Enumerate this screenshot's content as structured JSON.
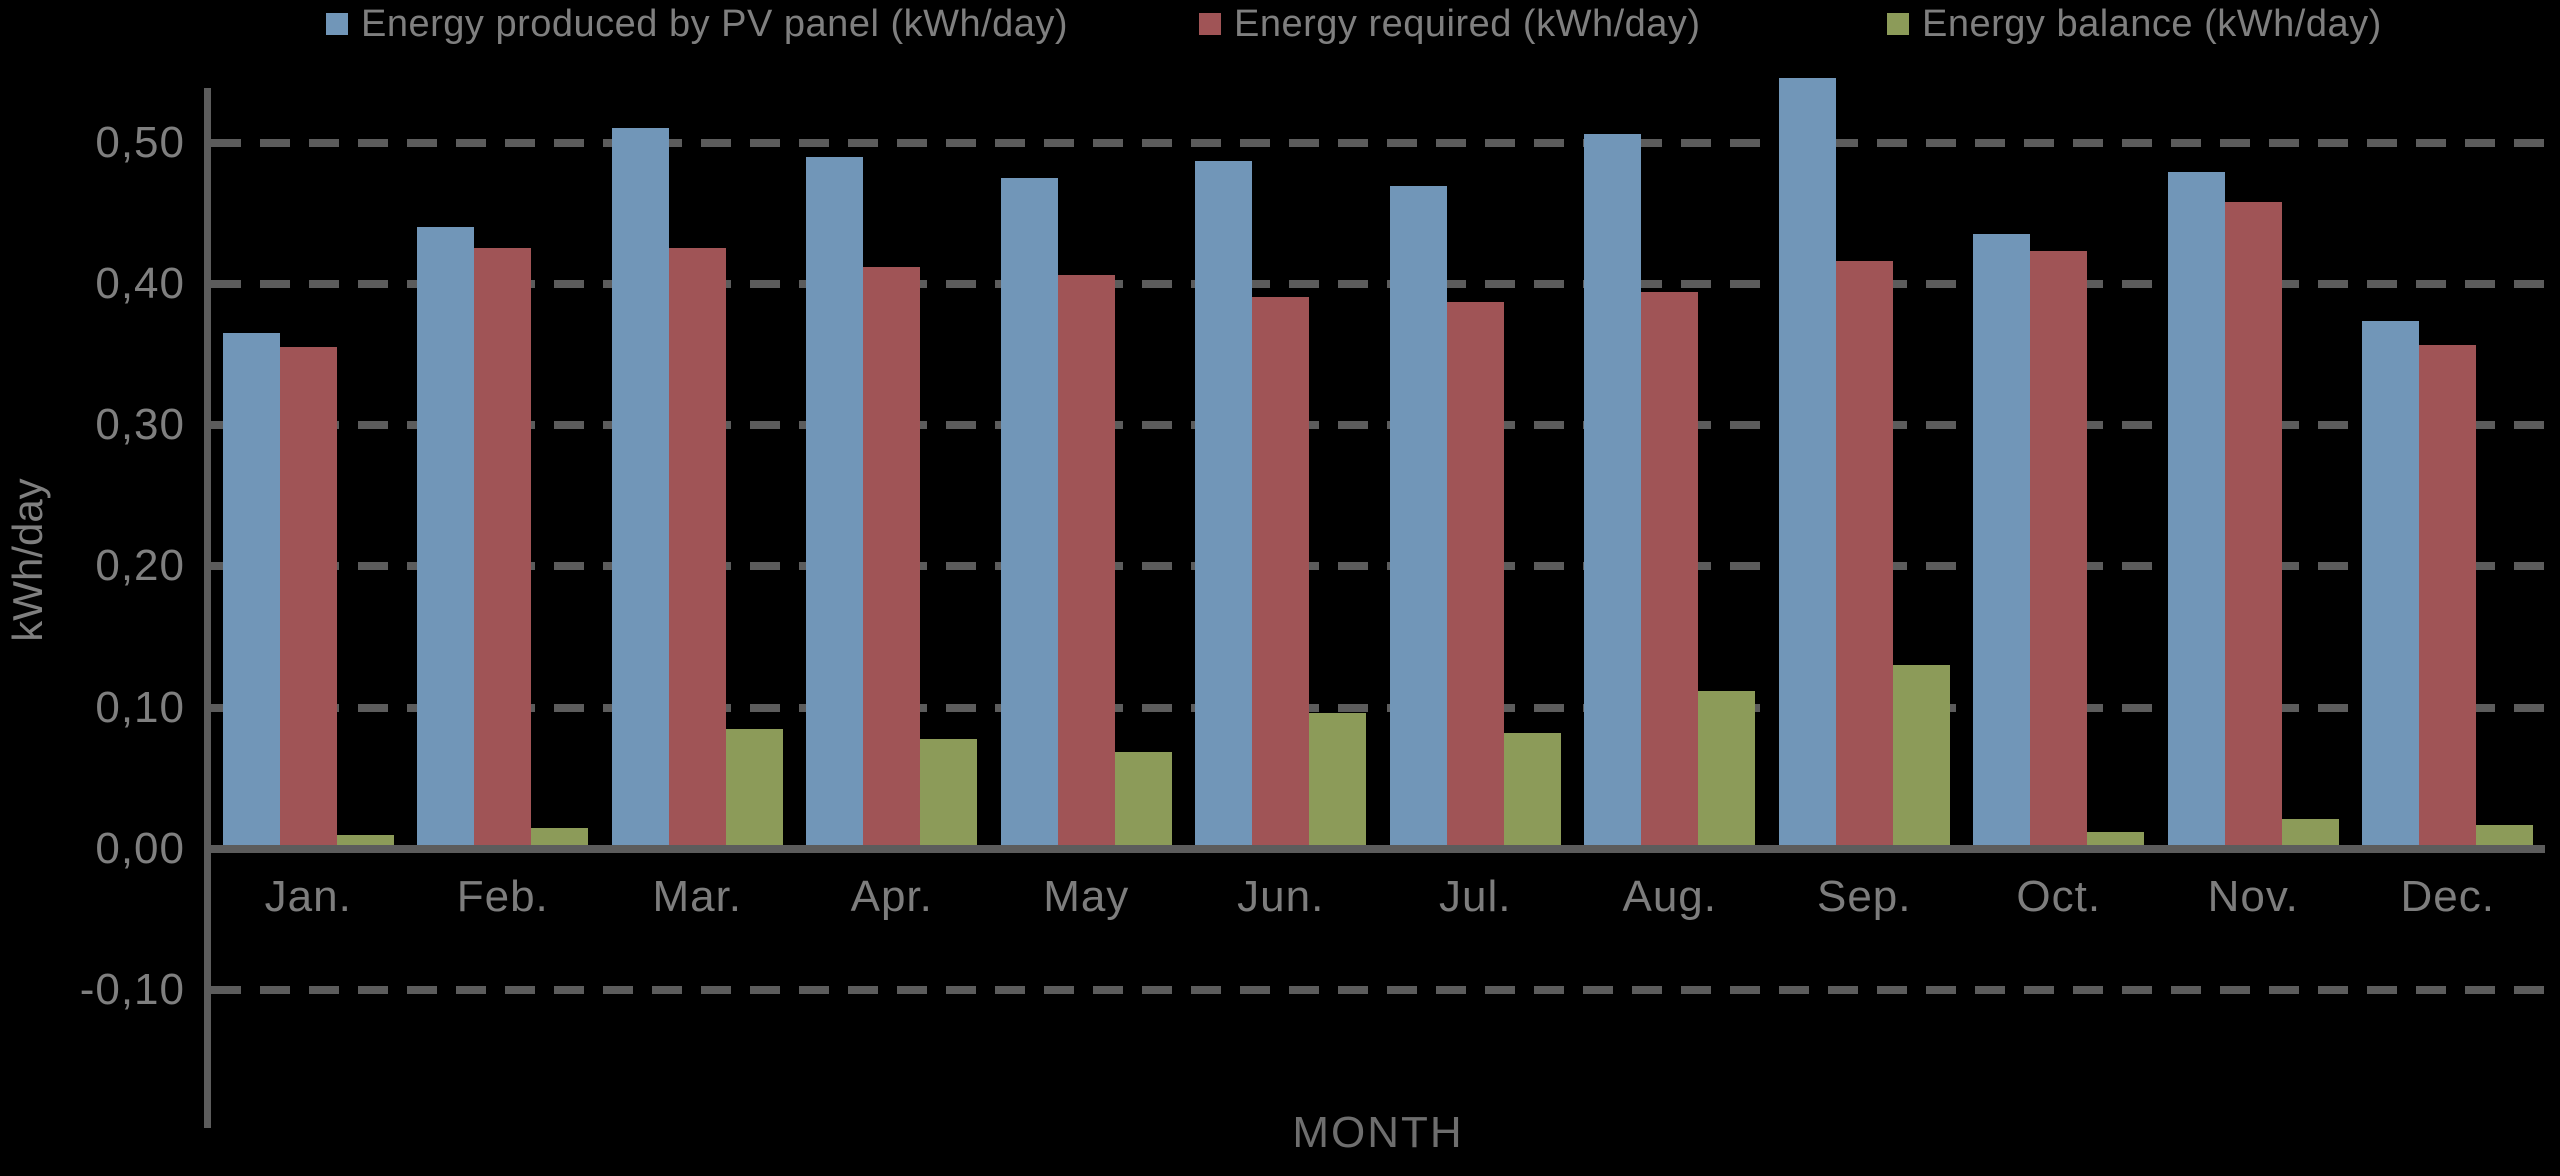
{
  "chart_data": {
    "type": "bar",
    "title": "",
    "categories": [
      "Jan.",
      "Feb.",
      "Mar.",
      "Apr.",
      "May",
      "Jun.",
      "Jul.",
      "Aug.",
      "Sep.",
      "Oct.",
      "Nov.",
      "Dec."
    ],
    "series": [
      {
        "name": "Energy produced by PV panel (kWh/day)",
        "color": "#7196B8",
        "values": [
          0.365,
          0.44,
          0.51,
          0.49,
          0.475,
          0.487,
          0.469,
          0.506,
          0.546,
          0.435,
          0.479,
          0.374
        ]
      },
      {
        "name": "Energy required (kWh/day)",
        "color": "#A05456",
        "values": [
          0.355,
          0.425,
          0.425,
          0.412,
          0.406,
          0.391,
          0.387,
          0.394,
          0.416,
          0.423,
          0.458,
          0.357
        ]
      },
      {
        "name": "Energy balance (kWh/day)",
        "color": "#8C9B59",
        "values": [
          0.01,
          0.015,
          0.085,
          0.078,
          0.069,
          0.096,
          0.082,
          0.112,
          0.13,
          0.012,
          0.021,
          0.017
        ]
      }
    ],
    "xlabel": "MONTH",
    "ylabel": "kWh/day",
    "y_ticks": [
      "0,50",
      "0,40",
      "0,30",
      "0,20",
      "0,10",
      "0,00",
      "-0,10"
    ],
    "y_tick_values": [
      0.5,
      0.4,
      0.3,
      0.2,
      0.1,
      0.0,
      -0.1
    ],
    "ylim": [
      -0.175,
      0.55
    ],
    "grid": "dashed horizontal gridlines",
    "legend_position": "top",
    "decimal_separator": "comma",
    "colors": {
      "background": "#000000",
      "axis": "#5C5C5C",
      "labels": "#7F7F7F"
    }
  }
}
